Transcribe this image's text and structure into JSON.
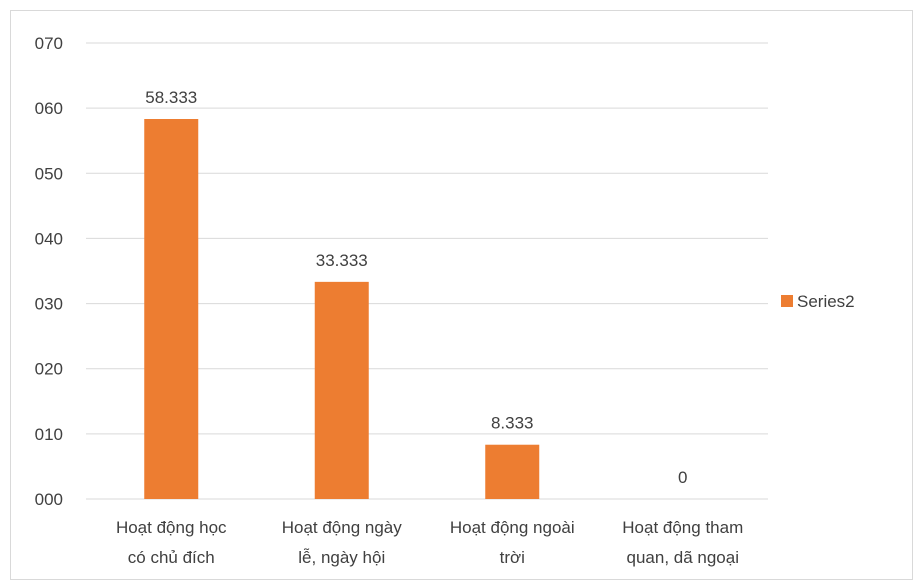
{
  "chart_data": {
    "type": "bar",
    "categories": [
      [
        "Hoạt động học",
        "có chủ đích"
      ],
      [
        "Hoạt động ngày",
        "lễ, ngày hội"
      ],
      [
        "Hoạt động ngoài",
        "trời"
      ],
      [
        "Hoạt động tham",
        "quan, dã ngoại"
      ]
    ],
    "series": [
      {
        "name": "Series2",
        "values": [
          58.333,
          33.333,
          8.333,
          0
        ],
        "color": "#ED7D31"
      }
    ],
    "data_labels": [
      "58.333",
      "33.333",
      "8.333",
      "0"
    ],
    "y_ticks": [
      "000",
      "010",
      "020",
      "030",
      "040",
      "050",
      "060",
      "070"
    ],
    "ylim": [
      0,
      70
    ],
    "grid": true,
    "legend_position": "right"
  }
}
